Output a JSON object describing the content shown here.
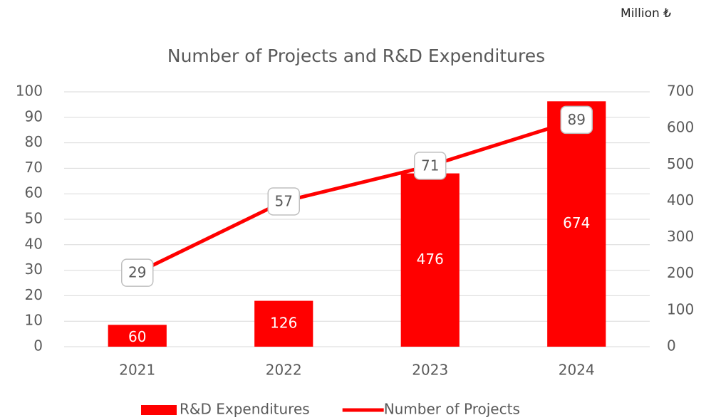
{
  "chart_data": {
    "type": "bar_line",
    "title": "Number of Projects and R&D Expenditures",
    "annotation": "Million ₺",
    "categories": [
      "2021",
      "2022",
      "2023",
      "2024"
    ],
    "series": [
      {
        "name": "R&D Expenditures",
        "type": "bar",
        "color": "#ff0000",
        "axis": "y2",
        "values": [
          60,
          126,
          476,
          674
        ]
      },
      {
        "name": "Number of Projects",
        "type": "line",
        "color": "#ff0000",
        "axis": "y",
        "values": [
          29,
          57,
          71,
          89
        ]
      }
    ],
    "ylim": [
      0,
      100
    ],
    "yticks": [
      0,
      10,
      20,
      30,
      40,
      50,
      60,
      70,
      80,
      90,
      100
    ],
    "y2lim": [
      0,
      700
    ],
    "y2ticks": [
      0,
      100,
      200,
      300,
      400,
      500,
      600,
      700
    ],
    "grid": true,
    "legend": "bottom"
  }
}
